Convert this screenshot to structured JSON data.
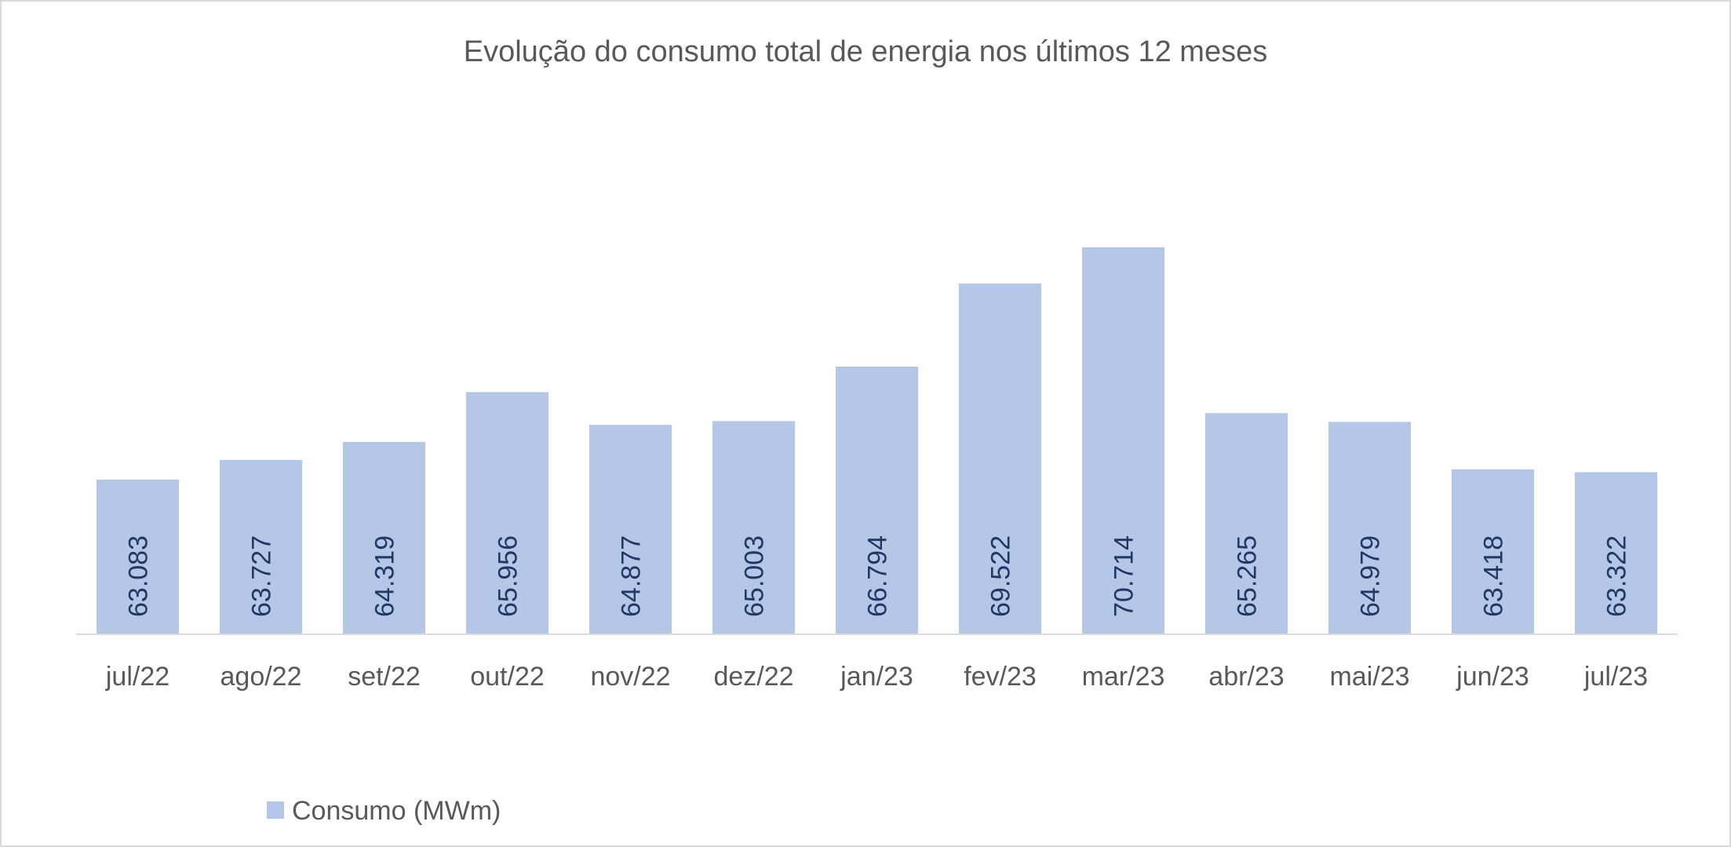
{
  "chart_data": {
    "type": "bar",
    "title": "Evolução do consumo total de energia nos últimos 12 meses",
    "categories": [
      "jul/22",
      "ago/22",
      "set/22",
      "out/22",
      "nov/22",
      "dez/22",
      "jan/23",
      "fev/23",
      "mar/23",
      "abr/23",
      "mai/23",
      "jun/23",
      "jul/23"
    ],
    "series": [
      {
        "name": "Consumo (MWm)",
        "values": [
          63083,
          63727,
          64319,
          65956,
          64877,
          65003,
          66794,
          69522,
          70714,
          65265,
          64979,
          63418,
          63322
        ],
        "labels": [
          "63.083",
          "63.727",
          "64.319",
          "65.956",
          "64.877",
          "65.003",
          "66.794",
          "69.522",
          "70.714",
          "65.265",
          "64.979",
          "63.418",
          "63.322"
        ],
        "color": "#b4c7e7"
      }
    ],
    "ylim": [
      58000,
      76000
    ],
    "grid": false,
    "legend": "bottom-left"
  }
}
